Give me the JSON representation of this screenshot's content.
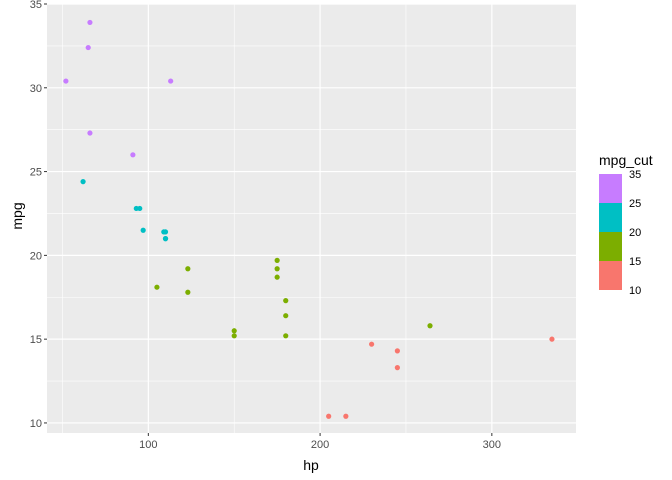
{
  "chart_data": {
    "type": "scatter",
    "xlabel": "hp",
    "ylabel": "mpg",
    "xlim": [
      41,
      349
    ],
    "ylim": [
      9.4,
      35.0
    ],
    "x_ticks": [
      100,
      200,
      300
    ],
    "y_ticks": [
      10,
      15,
      20,
      25,
      30,
      35
    ],
    "x_tick_labels": [
      "100",
      "200",
      "300"
    ],
    "y_tick_labels": [
      "10",
      "15",
      "20",
      "25",
      "30",
      "35"
    ],
    "grid": true,
    "panel_background": "#ebebeb",
    "grid_color": "#ffffff",
    "legend": {
      "title": "mpg_cut",
      "placement": "right",
      "labels": [
        "35",
        "25",
        "20",
        "15",
        "10"
      ],
      "bands": [
        {
          "color": "#c77cff"
        },
        {
          "color": "#00bfc4"
        },
        {
          "color": "#7cae00"
        },
        {
          "color": "#f8766d"
        }
      ]
    },
    "points": [
      {
        "x": 66,
        "y": 33.9,
        "color": "#c77cff"
      },
      {
        "x": 65,
        "y": 32.4,
        "color": "#c77cff"
      },
      {
        "x": 52,
        "y": 30.4,
        "color": "#c77cff"
      },
      {
        "x": 113,
        "y": 30.4,
        "color": "#c77cff"
      },
      {
        "x": 66,
        "y": 27.3,
        "color": "#c77cff"
      },
      {
        "x": 91,
        "y": 26.0,
        "color": "#c77cff"
      },
      {
        "x": 62,
        "y": 24.4,
        "color": "#00bfc4"
      },
      {
        "x": 93,
        "y": 22.8,
        "color": "#00bfc4"
      },
      {
        "x": 95,
        "y": 22.8,
        "color": "#00bfc4"
      },
      {
        "x": 97,
        "y": 21.5,
        "color": "#00bfc4"
      },
      {
        "x": 109,
        "y": 21.4,
        "color": "#00bfc4"
      },
      {
        "x": 110,
        "y": 21.4,
        "color": "#00bfc4"
      },
      {
        "x": 110,
        "y": 21.0,
        "color": "#00bfc4"
      },
      {
        "x": 110,
        "y": 21.0,
        "color": "#00bfc4"
      },
      {
        "x": 175,
        "y": 19.7,
        "color": "#7cae00"
      },
      {
        "x": 123,
        "y": 19.2,
        "color": "#7cae00"
      },
      {
        "x": 175,
        "y": 19.2,
        "color": "#7cae00"
      },
      {
        "x": 175,
        "y": 18.7,
        "color": "#7cae00"
      },
      {
        "x": 105,
        "y": 18.1,
        "color": "#7cae00"
      },
      {
        "x": 123,
        "y": 17.8,
        "color": "#7cae00"
      },
      {
        "x": 180,
        "y": 17.3,
        "color": "#7cae00"
      },
      {
        "x": 180,
        "y": 16.4,
        "color": "#7cae00"
      },
      {
        "x": 264,
        "y": 15.8,
        "color": "#7cae00"
      },
      {
        "x": 150,
        "y": 15.5,
        "color": "#7cae00"
      },
      {
        "x": 150,
        "y": 15.2,
        "color": "#7cae00"
      },
      {
        "x": 180,
        "y": 15.2,
        "color": "#7cae00"
      },
      {
        "x": 335,
        "y": 15.0,
        "color": "#f8766d"
      },
      {
        "x": 230,
        "y": 14.7,
        "color": "#f8766d"
      },
      {
        "x": 245,
        "y": 14.3,
        "color": "#f8766d"
      },
      {
        "x": 245,
        "y": 13.3,
        "color": "#f8766d"
      },
      {
        "x": 205,
        "y": 10.4,
        "color": "#f8766d"
      },
      {
        "x": 215,
        "y": 10.4,
        "color": "#f8766d"
      }
    ]
  }
}
